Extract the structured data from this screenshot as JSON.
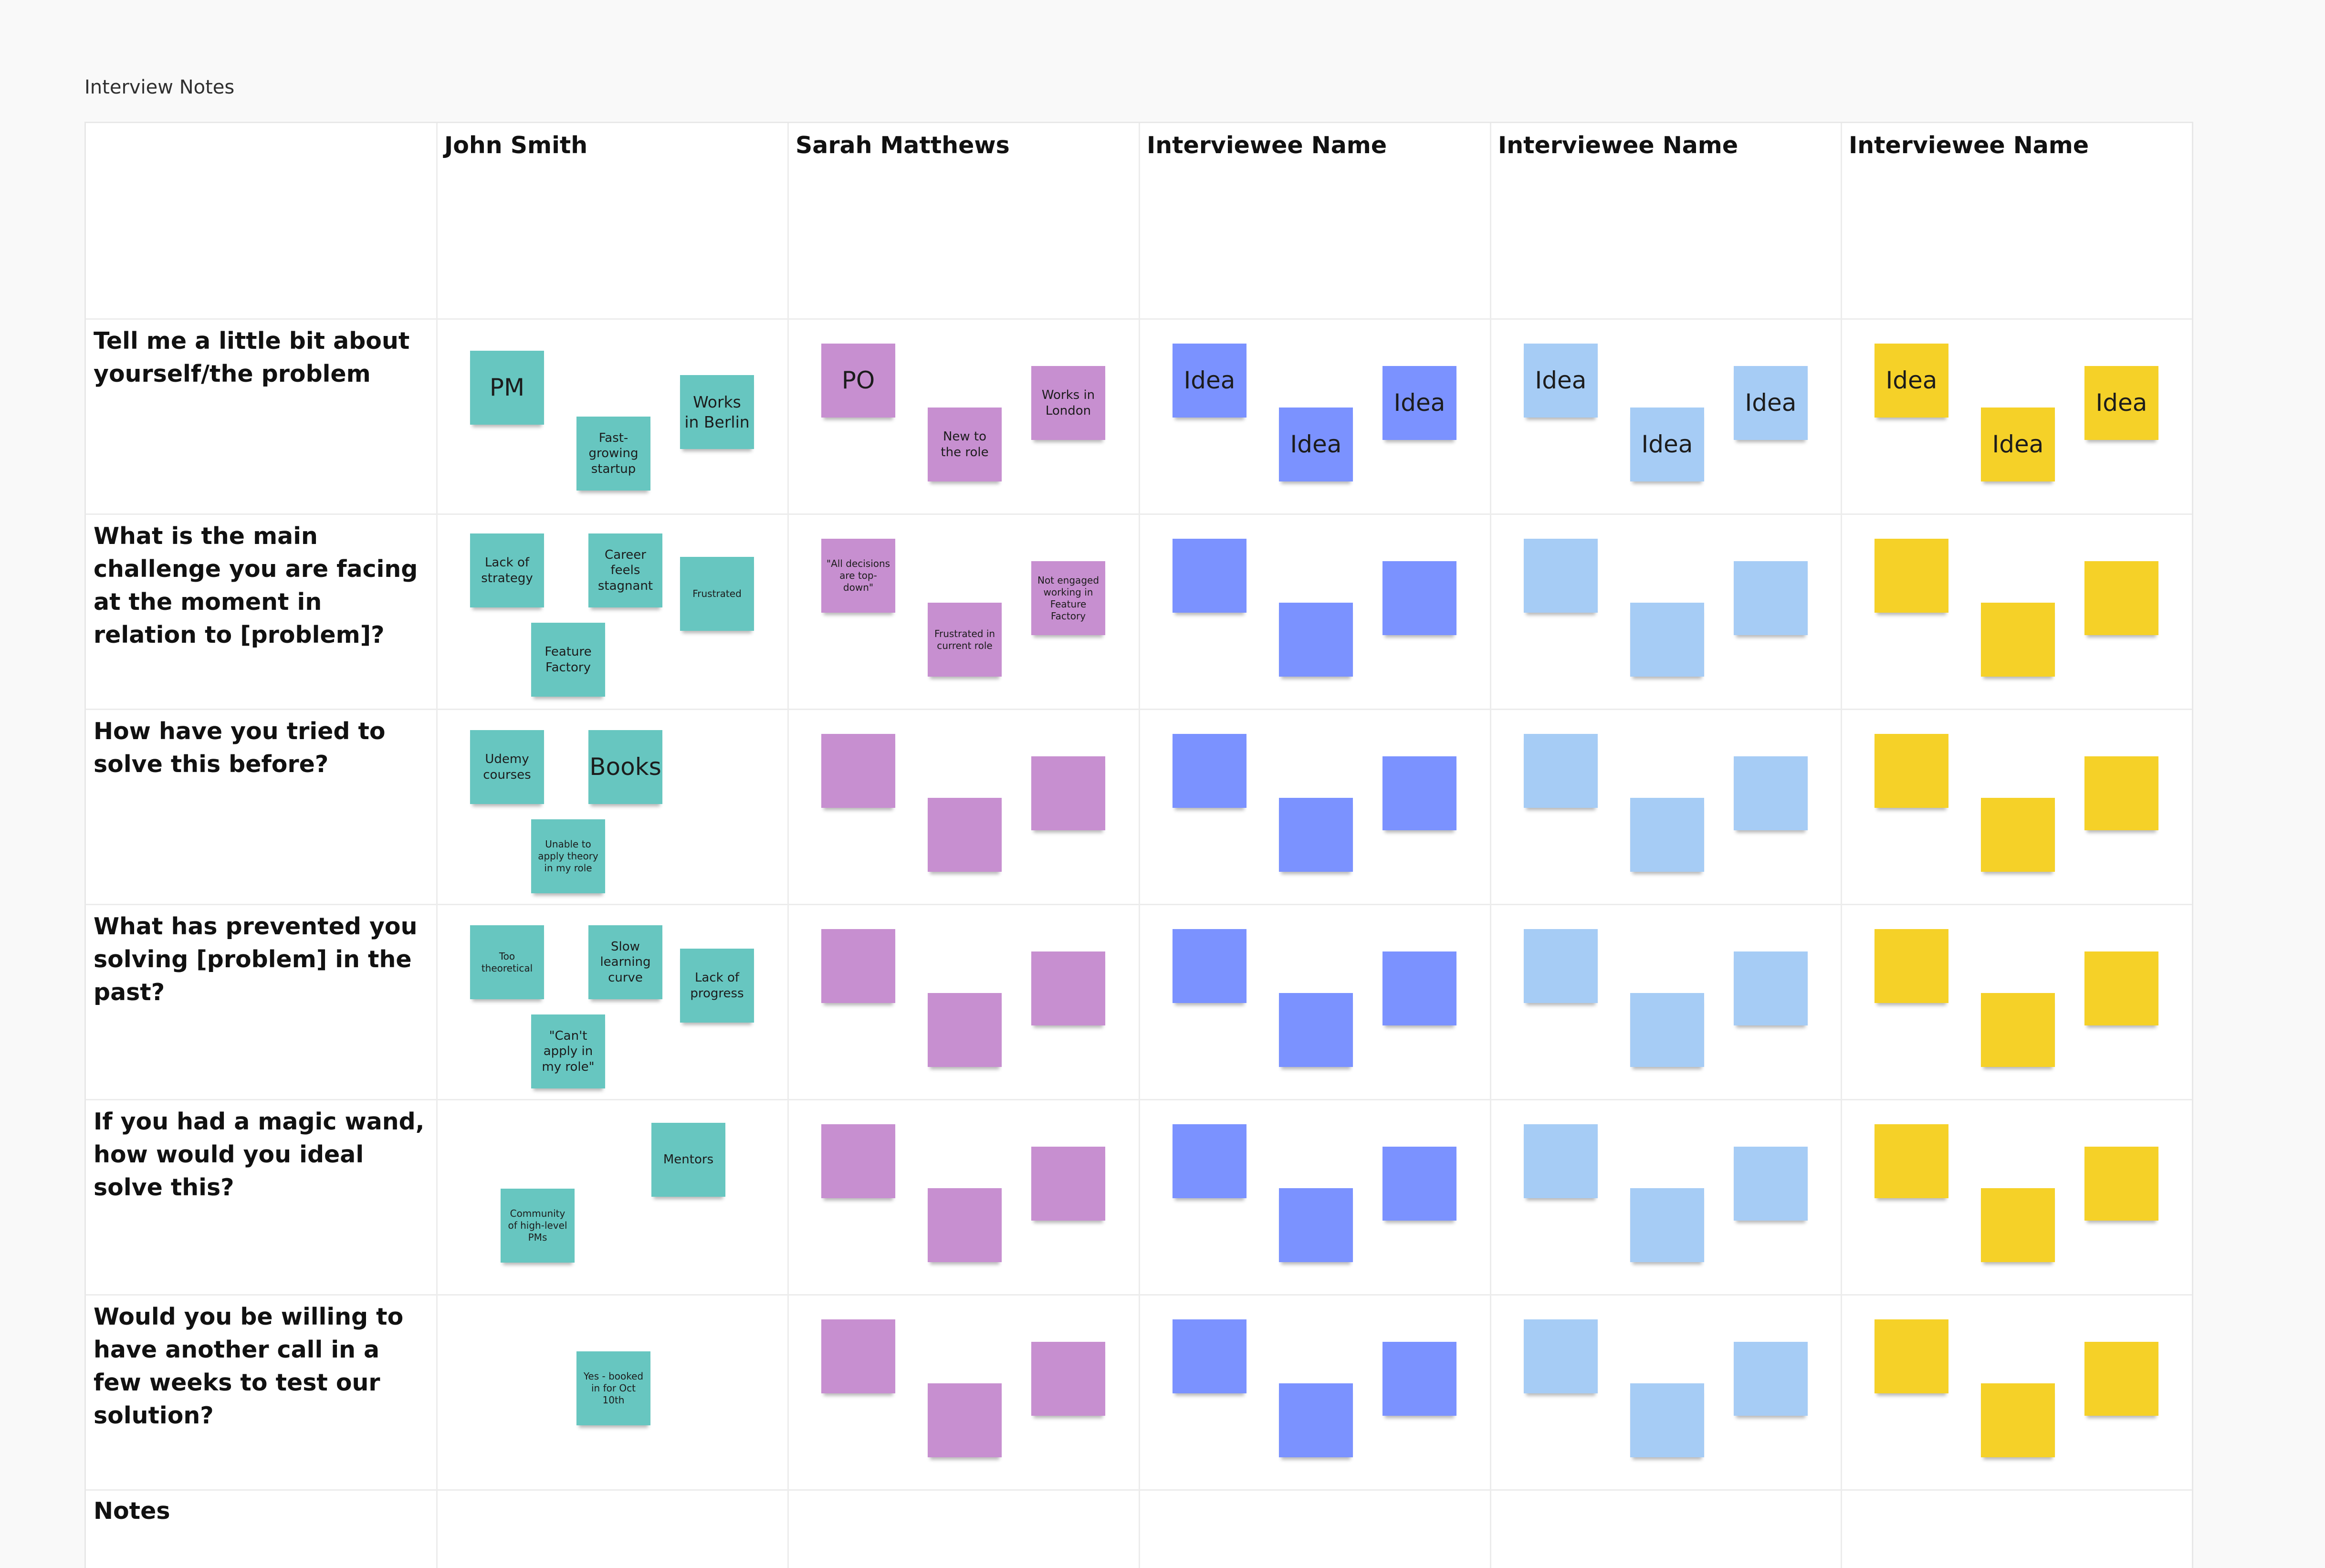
{
  "board_title": "Interview Notes",
  "colors": {
    "teal": "#67c6c0",
    "purple": "#c78fd0",
    "blue": "#7b92ff",
    "light_blue": "#a6ccf5",
    "yellow": "#f5d128"
  },
  "columns": [
    "John Smith",
    "Sarah Matthews",
    "Interviewee Name",
    "Interviewee Name",
    "Interviewee Name"
  ],
  "questions": [
    "Tell me a little bit about yourself/the problem",
    "What is the main challenge you are facing at the moment in relation to [problem]?",
    "How have you tried to solve this before?",
    "What has prevented you solving [problem] in the past?",
    "If you had a magic wand, how would you ideal solve this?",
    "Would you be willing to have another call in a few weeks to test our solution?",
    "Notes"
  ],
  "john_smith": {
    "q1": [
      "PM",
      "Fast-growing startup",
      "Works in Berlin"
    ],
    "q2": [
      "Lack of strategy",
      "Career feels stagnant",
      "Frustrated",
      "Feature Factory"
    ],
    "q3": [
      "Udemy courses",
      "Books",
      "Unable to apply theory in my role"
    ],
    "q4": [
      "Too theoretical",
      "Slow learning curve",
      "Lack of progress",
      "\"Can't apply in my role\""
    ],
    "q5": [
      "Mentors",
      "Community of high-level PMs"
    ],
    "q6": [
      "Yes - booked in for Oct 10th"
    ]
  },
  "sarah_matthews": {
    "q1": [
      "PO",
      "New to the role",
      "Works in London"
    ],
    "q2": [
      "\"All decisions are top-down\"",
      "Frustrated in current role",
      "Not engaged working in Feature Factory"
    ]
  },
  "placeholder_label": "Idea"
}
